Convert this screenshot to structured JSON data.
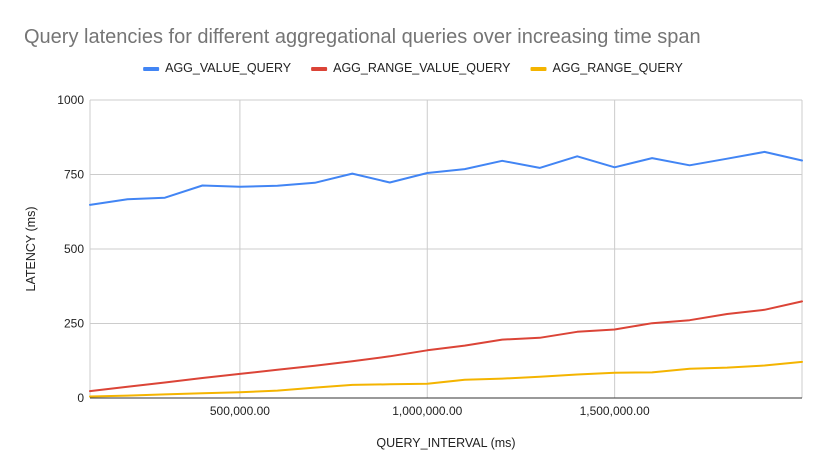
{
  "chart_data": {
    "type": "line",
    "title": "Query latencies for different aggregational queries over increasing time span",
    "xlabel": "QUERY_INTERVAL (ms)",
    "ylabel": "LATENCY (ms)",
    "xlim": [
      100000,
      2000000
    ],
    "ylim": [
      0,
      1000
    ],
    "x_ticks": [
      500000,
      1000000,
      1500000
    ],
    "x_tick_labels": [
      "500,000.00",
      "1,000,000.00",
      "1,500,000.00"
    ],
    "y_ticks": [
      0,
      250,
      500,
      750,
      1000
    ],
    "y_tick_labels": [
      "0",
      "250",
      "500",
      "750",
      "1000"
    ],
    "grid": true,
    "legend_position": "top",
    "x": [
      100000,
      200000,
      300000,
      400000,
      500000,
      600000,
      700000,
      800000,
      900000,
      1000000,
      1100000,
      1200000,
      1300000,
      1400000,
      1500000,
      1600000,
      1700000,
      1800000,
      1900000,
      2000000
    ],
    "series": [
      {
        "name": "AGG_VALUE_QUERY",
        "color": "#4285f4",
        "values": [
          648,
          667,
          672,
          713,
          709,
          712,
          722,
          753,
          723,
          755,
          768,
          796,
          772,
          811,
          774,
          805,
          781,
          803,
          826,
          797
        ]
      },
      {
        "name": "AGG_RANGE_VALUE_QUERY",
        "color": "#db4437",
        "values": [
          23,
          38,
          52,
          67,
          81,
          95,
          108,
          123,
          140,
          160,
          176,
          196,
          202,
          222,
          230,
          251,
          261,
          282,
          296,
          324
        ]
      },
      {
        "name": "AGG_RANGE_QUERY",
        "color": "#f4b400",
        "values": [
          5,
          8,
          12,
          16,
          19,
          25,
          35,
          44,
          46,
          48,
          61,
          65,
          71,
          79,
          85,
          86,
          98,
          102,
          109,
          121
        ]
      }
    ]
  }
}
